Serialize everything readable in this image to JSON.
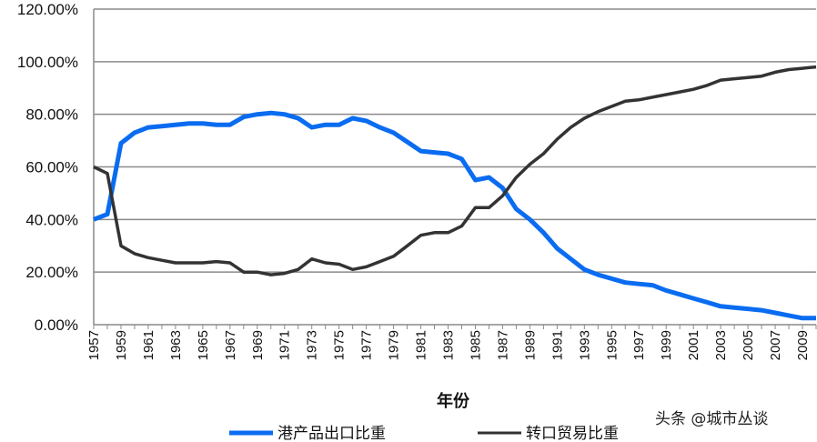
{
  "chart_data": {
    "type": "line",
    "title": "",
    "xlabel": "年份",
    "ylabel": "",
    "ylim": [
      0,
      120
    ],
    "yticks": [
      "0.00%",
      "20.00%",
      "40.00%",
      "60.00%",
      "80.00%",
      "100.00%",
      "120.00%"
    ],
    "grid": true,
    "legend": "bottom",
    "x": [
      1957,
      1958,
      1959,
      1960,
      1961,
      1962,
      1963,
      1964,
      1965,
      1966,
      1967,
      1968,
      1969,
      1970,
      1971,
      1972,
      1973,
      1974,
      1975,
      1976,
      1977,
      1978,
      1979,
      1980,
      1981,
      1982,
      1983,
      1984,
      1985,
      1986,
      1987,
      1988,
      1989,
      1990,
      1991,
      1992,
      1993,
      1994,
      1995,
      1996,
      1997,
      1998,
      1999,
      2000,
      2001,
      2002,
      2003,
      2004,
      2005,
      2006,
      2007,
      2008,
      2009,
      2010
    ],
    "xtick_labels": [
      "1957",
      "1959",
      "1961",
      "1963",
      "1965",
      "1967",
      "1969",
      "1971",
      "1973",
      "1975",
      "1977",
      "1979",
      "1981",
      "1983",
      "1985",
      "1987",
      "1989",
      "1991",
      "1993",
      "1995",
      "1997",
      "1999",
      "2001",
      "2003",
      "2005",
      "2007",
      "2009"
    ],
    "series": [
      {
        "name": "港产品出口比重",
        "color": "#0a6cf0",
        "values": [
          40,
          42,
          69,
          73,
          75,
          75.5,
          76,
          76.5,
          76.5,
          76,
          76,
          79,
          80,
          80.5,
          80,
          78.5,
          75,
          76,
          76,
          78.5,
          77.5,
          75,
          73,
          69.5,
          66,
          65.5,
          65,
          63,
          55,
          56,
          52,
          44,
          40,
          35,
          29,
          25,
          21,
          19,
          17.5,
          16,
          15.5,
          15,
          13,
          11.5,
          10,
          8.5,
          7,
          6.5,
          6,
          5.5,
          4.5,
          3.5,
          2.5,
          2.5
        ]
      },
      {
        "name": "转口贸易比重",
        "color": "#333333",
        "values": [
          60,
          57.5,
          30,
          27,
          25.5,
          24.5,
          23.5,
          23.5,
          23.5,
          24,
          23.5,
          20,
          20,
          19,
          19.5,
          21,
          25,
          23.5,
          23,
          21,
          22,
          24,
          26,
          30,
          34,
          35,
          35,
          37.5,
          44.5,
          44.5,
          49,
          56,
          61,
          65,
          70.5,
          75,
          78.5,
          81,
          83,
          85,
          85.5,
          86.5,
          87.5,
          88.5,
          89.5,
          91,
          93,
          93.5,
          94,
          94.5,
          96,
          97,
          97.5,
          98
        ]
      }
    ]
  },
  "watermark": "头条 @城市丛谈"
}
